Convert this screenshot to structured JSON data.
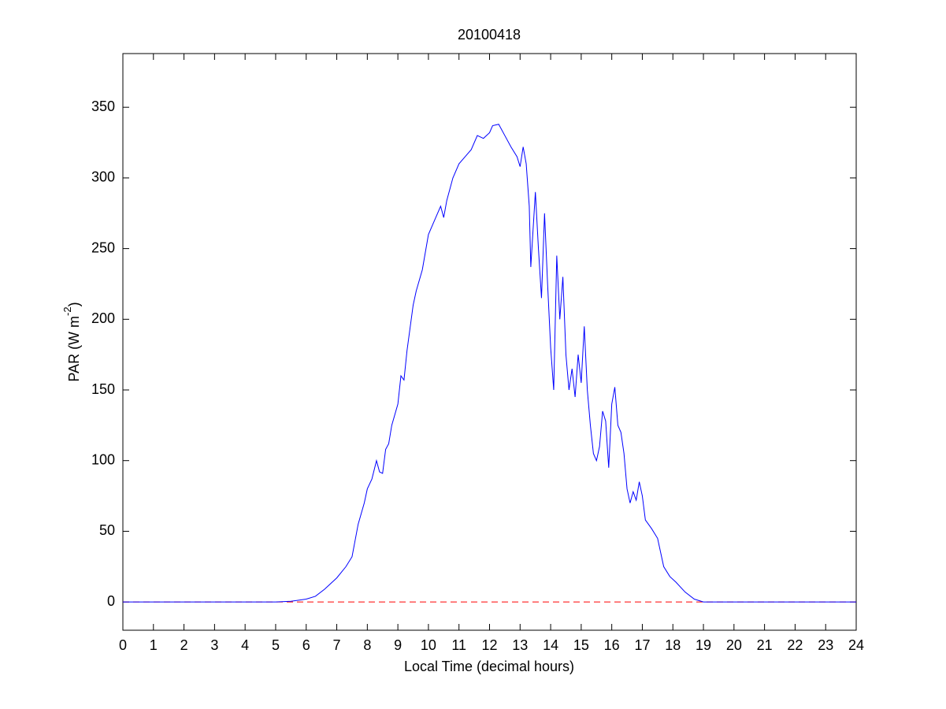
{
  "chart_data": {
    "type": "line",
    "title": "20100418",
    "xlabel": "Local Time (decimal hours)",
    "ylabel": [
      "PAR (W m",
      "-2",
      ")"
    ],
    "x": [
      0,
      5,
      5.5,
      6,
      6.3,
      6.6,
      7,
      7.3,
      7.5,
      7.7,
      7.9,
      8.0,
      8.15,
      8.3,
      8.4,
      8.5,
      8.6,
      8.7,
      8.8,
      9.0,
      9.1,
      9.2,
      9.3,
      9.5,
      9.6,
      9.8,
      10.0,
      10.2,
      10.4,
      10.5,
      10.6,
      10.8,
      11.0,
      11.2,
      11.4,
      11.6,
      11.8,
      12.0,
      12.1,
      12.3,
      12.5,
      12.7,
      12.9,
      13.0,
      13.1,
      13.2,
      13.3,
      13.35,
      13.5,
      13.6,
      13.7,
      13.8,
      13.9,
      14.0,
      14.1,
      14.2,
      14.3,
      14.4,
      14.5,
      14.6,
      14.7,
      14.8,
      14.9,
      15.0,
      15.1,
      15.2,
      15.3,
      15.4,
      15.5,
      15.6,
      15.7,
      15.8,
      15.9,
      16.0,
      16.1,
      16.2,
      16.3,
      16.4,
      16.5,
      16.6,
      16.7,
      16.8,
      16.9,
      17.0,
      17.1,
      17.3,
      17.5,
      17.7,
      17.9,
      18.1,
      18.4,
      18.7,
      19.0,
      20,
      24
    ],
    "series": [
      {
        "color": "#0000ff",
        "values": [
          0,
          0,
          0.5,
          2,
          4,
          9,
          17,
          25,
          32,
          55,
          70,
          80,
          87,
          100,
          92,
          91,
          108,
          112,
          125,
          140,
          160,
          157,
          178,
          210,
          220,
          235,
          260,
          270,
          280,
          272,
          284,
          300,
          310,
          315,
          320,
          330,
          328,
          332,
          337,
          338,
          330,
          322,
          315,
          308,
          322,
          310,
          280,
          237,
          290,
          250,
          215,
          275,
          225,
          180,
          150,
          245,
          200,
          230,
          175,
          150,
          165,
          145,
          175,
          155,
          195,
          150,
          125,
          105,
          100,
          110,
          135,
          128,
          95,
          140,
          152,
          125,
          120,
          105,
          80,
          70,
          78,
          72,
          85,
          75,
          58,
          52,
          45,
          25,
          18,
          14,
          7,
          2,
          0,
          0,
          0
        ]
      }
    ],
    "hline": {
      "value": 0,
      "color": "#ff0000"
    },
    "xlim": [
      0,
      24
    ],
    "xticks": [
      0,
      1,
      2,
      3,
      4,
      5,
      6,
      7,
      8,
      9,
      10,
      11,
      12,
      13,
      14,
      15,
      16,
      17,
      18,
      19,
      20,
      21,
      22,
      23,
      24
    ],
    "ylim": [
      -20,
      388
    ],
    "yticks": [
      0,
      50,
      100,
      150,
      200,
      250,
      300,
      350
    ],
    "grid": false
  }
}
